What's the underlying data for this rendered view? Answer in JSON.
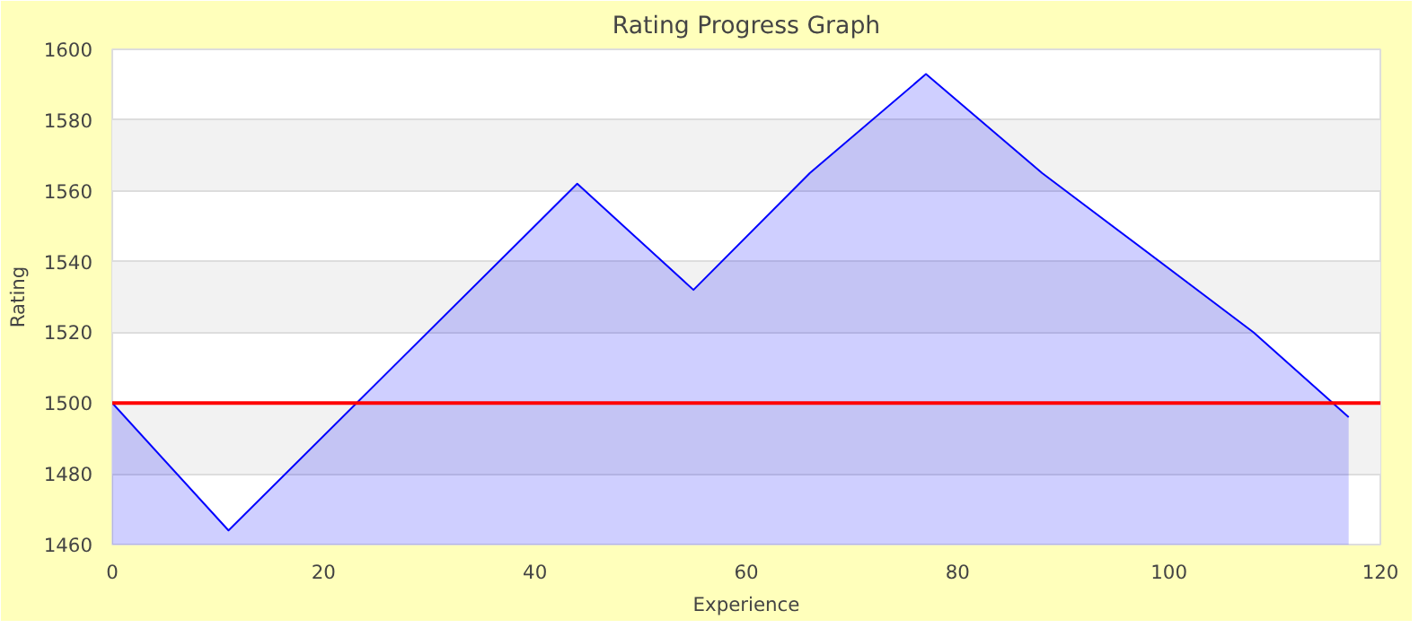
{
  "chart_data": {
    "type": "area",
    "title": "Rating Progress Graph",
    "xlabel": "Experience",
    "ylabel": "Rating",
    "x": [
      0,
      11,
      44,
      55,
      66,
      77,
      88,
      108,
      117
    ],
    "series": [
      {
        "color": "#0000ff",
        "values": [
          1500,
          1464,
          1562,
          1532,
          1565,
          1593,
          1565,
          1520,
          1496
        ]
      }
    ],
    "xlim": [
      0,
      120
    ],
    "ylim": [
      1460,
      1600
    ],
    "xticks": [
      0,
      20,
      40,
      60,
      80,
      100,
      120
    ],
    "yticks": [
      1460,
      1480,
      1500,
      1520,
      1540,
      1560,
      1580,
      1600
    ],
    "grid": "y",
    "ref_lines": [
      {
        "axis": "y",
        "value": 1500,
        "color": "#ff0000"
      }
    ]
  }
}
